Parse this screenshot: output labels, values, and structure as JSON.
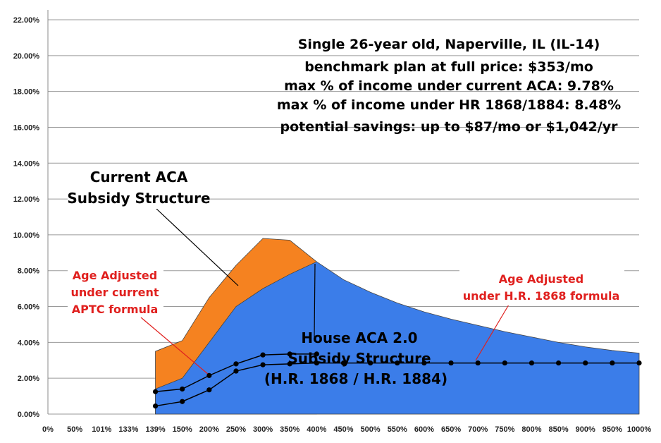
{
  "chart_data": {
    "type": "area",
    "ylim": [
      0,
      22
    ],
    "y_ticks": [
      "0.00%",
      "2.00%",
      "4.00%",
      "6.00%",
      "8.00%",
      "10.00%",
      "12.00%",
      "14.00%",
      "16.00%",
      "18.00%",
      "20.00%",
      "22.00%"
    ],
    "categories": [
      "0%",
      "50%",
      "101%",
      "133%",
      "139%",
      "150%",
      "200%",
      "250%",
      "300%",
      "350%",
      "400%",
      "450%",
      "500%",
      "550%",
      "600%",
      "650%",
      "700%",
      "750%",
      "800%",
      "850%",
      "900%",
      "950%",
      "1000%"
    ],
    "series": [
      {
        "name": "Current ACA Subsidy Structure",
        "color": "#f58220",
        "values": [
          null,
          null,
          null,
          null,
          3.5,
          4.1,
          6.5,
          8.3,
          9.8,
          9.7,
          8.5,
          null,
          null,
          null,
          null,
          null,
          null,
          null,
          null,
          null,
          null,
          null,
          null
        ]
      },
      {
        "name": "House ACA 2.0 Subsidy Structure (H.R. 1868 / H.R. 1884)",
        "color": "#3b7de9",
        "values": [
          null,
          null,
          null,
          null,
          1.4,
          2.0,
          4.0,
          6.0,
          7.0,
          7.8,
          8.5,
          7.5,
          6.8,
          6.2,
          5.7,
          5.3,
          4.95,
          4.6,
          4.3,
          4.0,
          3.75,
          3.55,
          3.4
        ]
      },
      {
        "name": "Age Adjusted under current APTC formula",
        "color": "#000000",
        "values": [
          null,
          null,
          null,
          null,
          1.25,
          1.4,
          2.15,
          2.8,
          3.3,
          3.35,
          3.35,
          null,
          null,
          null,
          null,
          null,
          null,
          null,
          null,
          null,
          null,
          null,
          null
        ]
      },
      {
        "name": "Age Adjusted under H.R. 1868 formula",
        "color": "#000000",
        "values": [
          null,
          null,
          null,
          null,
          0.45,
          0.7,
          1.35,
          2.4,
          2.75,
          2.8,
          2.85,
          2.85,
          2.85,
          2.85,
          2.85,
          2.85,
          2.85,
          2.85,
          2.85,
          2.85,
          2.85,
          2.85,
          2.85
        ]
      }
    ],
    "annotations": {
      "title_lines": [
        "Single 26-year old, Naperville, IL (IL-14)",
        "benchmark plan at full price: $353/mo",
        "max % of income under current ACA: 9.78%",
        "max % of income under HR 1868/1884: 8.48%",
        "potential savings: up to $87/mo or $1,042/yr"
      ],
      "current_aca_label": [
        "Current ACA",
        "Subsidy Structure"
      ],
      "house_aca_label": [
        "House ACA 2.0",
        "Subsidy Structure",
        "(H.R. 1868 / H.R. 1884)"
      ],
      "age_adjusted_current_label": [
        "Age Adjusted",
        "under current",
        "APTC formula"
      ],
      "age_adjusted_hr1868_label": [
        "Age Adjusted",
        "under H.R. 1868 formula"
      ]
    }
  }
}
